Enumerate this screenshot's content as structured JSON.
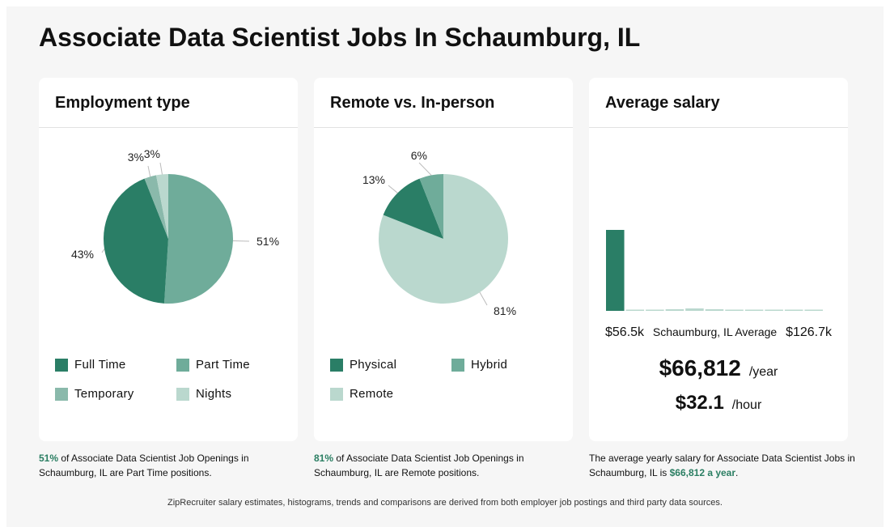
{
  "page": {
    "title": "Associate Data Scientist Jobs In Schaumburg, IL",
    "footer": "ZipRecruiter salary estimates, histograms, trends and comparisons are derived from both employer job postings and third party data sources."
  },
  "colors": {
    "dark_green": "#2a7e66",
    "medium_green": "#6fac9a",
    "light_green": "#8ab9ab",
    "pale_green": "#bad8ce",
    "highlight": "#2a7e62"
  },
  "employment": {
    "heading": "Employment type",
    "legend": [
      "Full Time",
      "Part Time",
      "Temporary",
      "Nights"
    ],
    "caption": {
      "pct": "51%",
      "text": " of Associate Data Scientist Job Openings in Schaumburg, IL are Part Time positions."
    }
  },
  "remote": {
    "heading": "Remote vs. In-person",
    "legend": [
      "Physical",
      "Hybrid",
      "Remote"
    ],
    "caption": {
      "pct": "81%",
      "text": " of Associate Data Scientist Job Openings in Schaumburg, IL are Remote positions."
    }
  },
  "salary": {
    "heading": "Average salary",
    "min_label": "$56.5k",
    "mid_label": "Schaumburg, IL Average",
    "max_label": "$126.7k",
    "yearly": "$66,812",
    "yearly_unit": "/year",
    "hourly": "$32.1",
    "hourly_unit": "/hour",
    "caption": {
      "text": "The average yearly salary for Associate Data Scientist Jobs in Schaumburg, IL is ",
      "highlight": "$66,812 a year",
      "end": "."
    }
  },
  "chart_data": [
    {
      "type": "pie",
      "title": "Employment type",
      "categories": [
        "Part Time",
        "Full Time",
        "Temporary",
        "Nights"
      ],
      "values": [
        51,
        43,
        3,
        3
      ],
      "labels": [
        "51%",
        "43%",
        "3%",
        "3%"
      ],
      "colors": [
        "#6fac9a",
        "#2a7e66",
        "#8ab9ab",
        "#bad8ce"
      ],
      "legend_placement": "bottom"
    },
    {
      "type": "pie",
      "title": "Remote vs. In-person",
      "categories": [
        "Remote",
        "Physical",
        "Hybrid"
      ],
      "values": [
        81,
        13,
        6
      ],
      "labels": [
        "81%",
        "13%",
        "6%"
      ],
      "colors": [
        "#bad8ce",
        "#2a7e66",
        "#6fac9a"
      ],
      "legend_placement": "bottom"
    },
    {
      "type": "bar",
      "title": "Average salary",
      "xlim_labels": [
        "$56.5k",
        "$126.7k"
      ],
      "values": [
        100,
        1,
        0,
        2,
        3,
        2,
        1,
        1,
        1,
        1,
        1
      ],
      "highlight_index": 0,
      "colors": [
        "#2a7e66",
        "#bad8ce"
      ],
      "grid": false
    }
  ]
}
